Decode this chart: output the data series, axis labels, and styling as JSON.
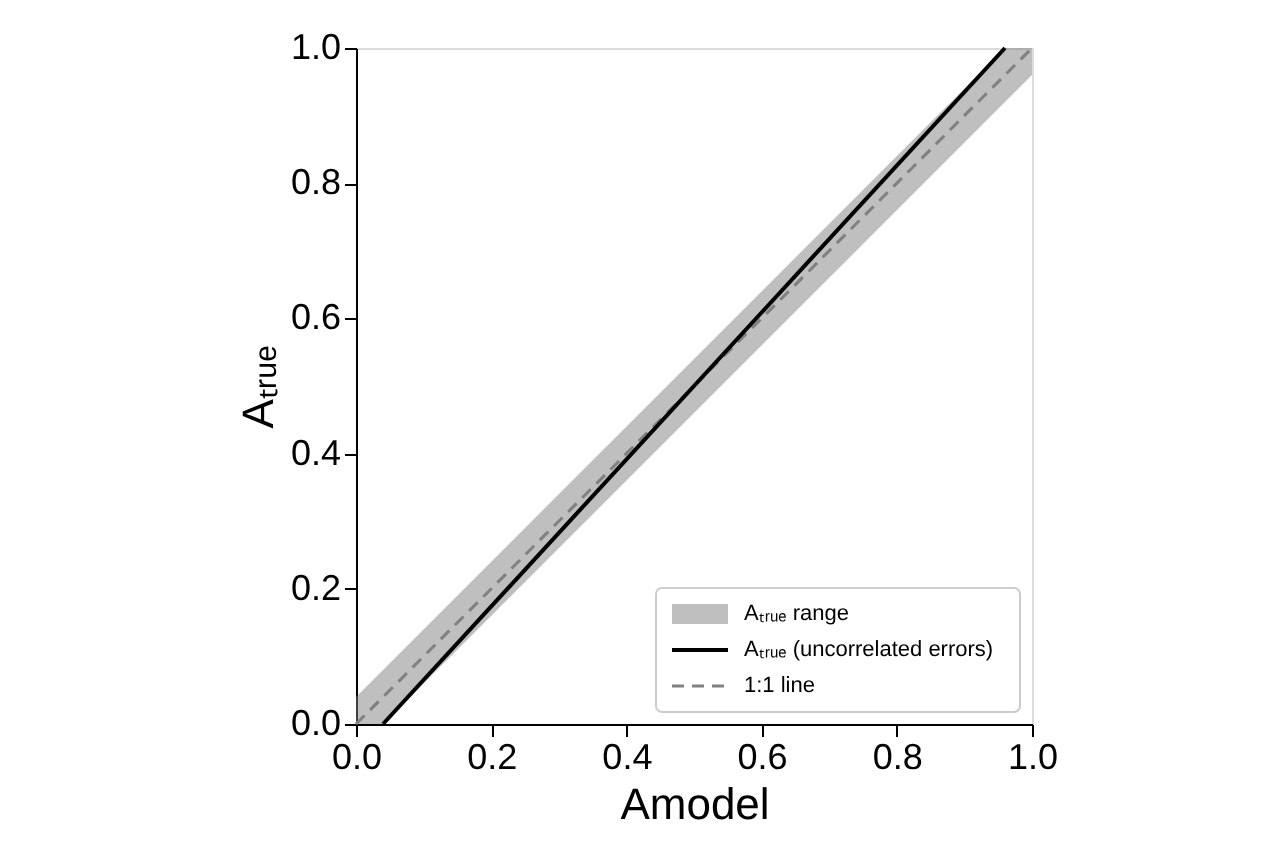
{
  "chart_data": {
    "type": "line",
    "xlabel": "Amodel",
    "ylabel": "Aₜᵣᵤₑ",
    "xlim": [
      0,
      1
    ],
    "ylim": [
      0,
      1
    ],
    "xticks": [
      {
        "value": 0,
        "label": "0.0"
      },
      0.2,
      0.4,
      0.6,
      0.8,
      {
        "value": 1,
        "label": "1.0"
      }
    ],
    "yticks": [
      {
        "value": 0,
        "label": "0.0"
      },
      0.2,
      0.4,
      0.6,
      0.8,
      {
        "value": 1,
        "label": "1.0"
      }
    ],
    "annotations": [
      "Aₜᵣᵤₑ range"
    ],
    "series": [
      {
        "name": "Aₜᵣᵤₑ (uncorrelated errors)",
        "color": "#000000",
        "line_style": "solid",
        "x": [
          0.04,
          0.96
        ],
        "values": [
          0,
          1.0
        ]
      },
      {
        "name": "1:1 line",
        "color": "#808080",
        "line_style": "dashed",
        "x": [
          0,
          0.04,
          0.96,
          1
        ],
        "values": [
          0,
          0.04,
          0.96,
          1
        ],
        "lower": [
          0,
          0,
          0.92,
          0.96
        ],
        "upper": [
          0.04,
          0.08,
          1.0,
          1.0
        ]
      }
    ],
    "grid": false,
    "legend": "bottom right"
  }
}
